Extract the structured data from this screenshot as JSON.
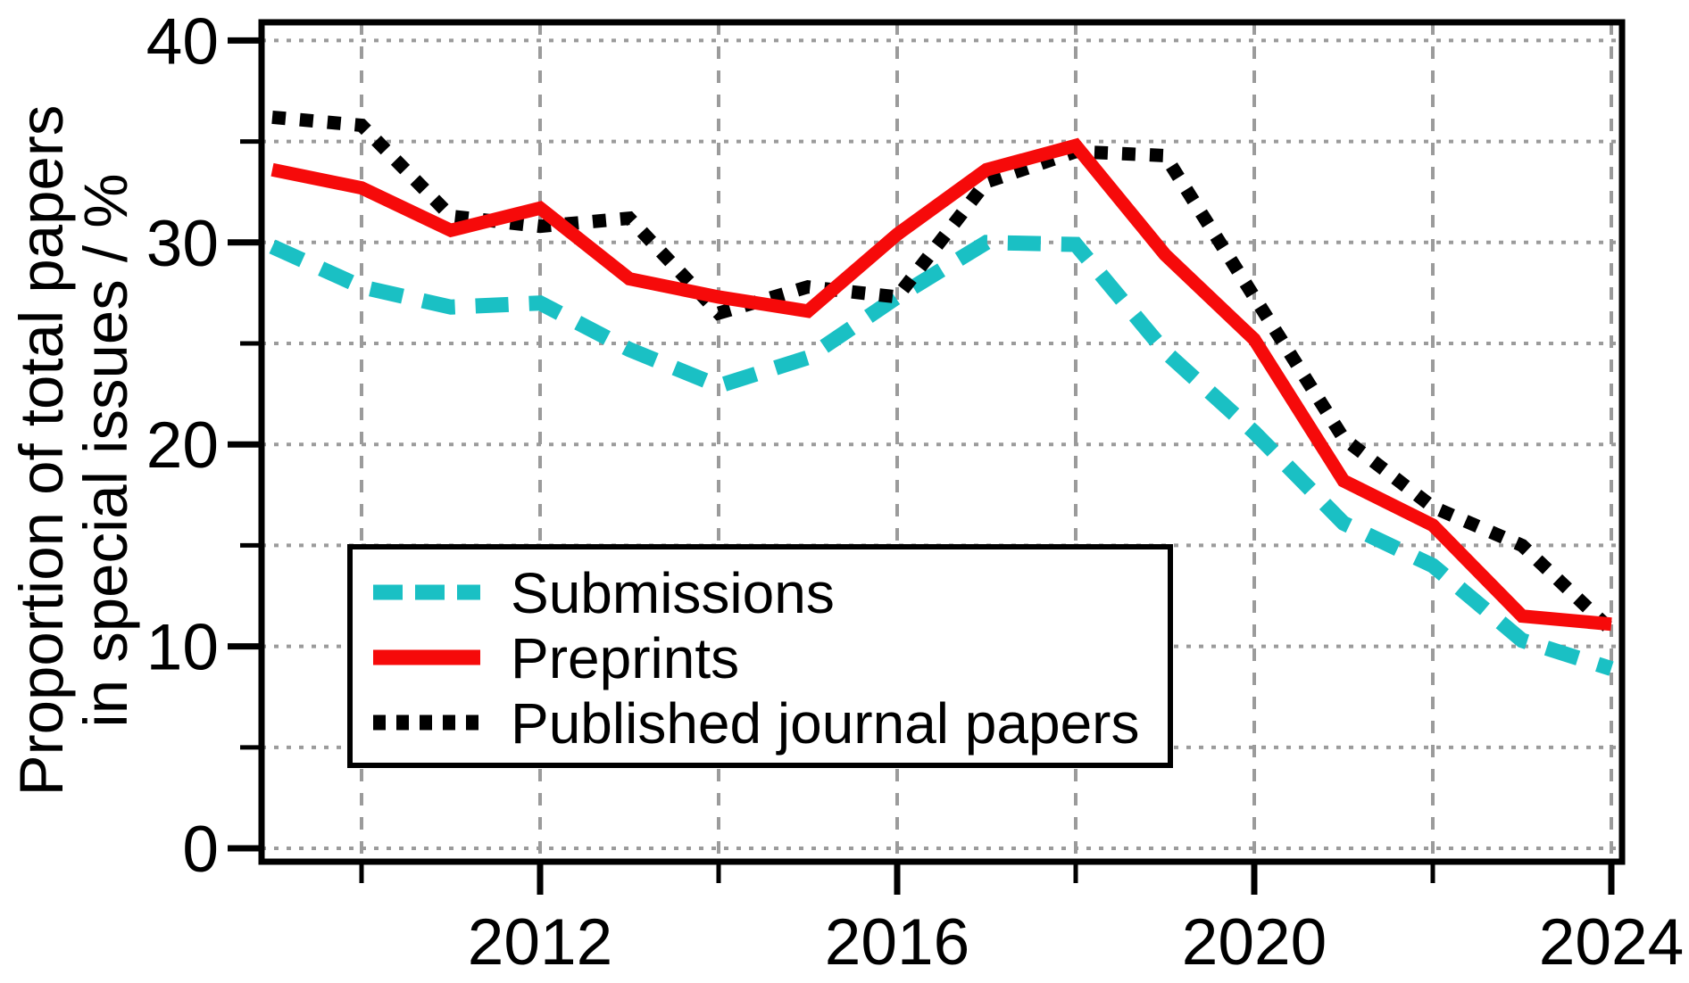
{
  "figure": {
    "background": "#ffffff",
    "ylabel_line1": "Proportion of total papers",
    "ylabel_line2": "in special issues / %"
  },
  "chart_data": {
    "type": "line",
    "title": "",
    "xlabel": "",
    "ylabel": "Proportion of total papers in special issues / %",
    "x": [
      2009,
      2010,
      2011,
      2012,
      2013,
      2014,
      2015,
      2016,
      2017,
      2018,
      2019,
      2020,
      2021,
      2022,
      2023,
      2024
    ],
    "series": [
      {
        "name": "Submissions",
        "color": "#1ac0c4",
        "style": "dashed",
        "values": [
          29.8,
          27.8,
          26.8,
          27.0,
          24.7,
          22.9,
          24.3,
          27.3,
          30.0,
          29.9,
          24.6,
          20.6,
          16.1,
          14.0,
          10.3,
          8.9
        ]
      },
      {
        "name": "Preprints",
        "color": "#f60a0a",
        "style": "solid",
        "values": [
          33.6,
          32.7,
          30.6,
          31.7,
          28.2,
          27.3,
          26.6,
          30.4,
          33.6,
          34.8,
          29.4,
          25.2,
          18.2,
          16.0,
          11.5,
          11.1
        ]
      },
      {
        "name": "Published journal papers",
        "color": "#000000",
        "style": "dotted",
        "values": [
          36.2,
          35.8,
          31.3,
          30.8,
          31.2,
          26.5,
          27.8,
          27.3,
          33.0,
          34.5,
          34.3,
          27.3,
          20.3,
          16.9,
          15.0,
          10.8
        ]
      }
    ],
    "draw_order": [
      0,
      2,
      1
    ],
    "xlim": [
      2008.88,
      2024.12
    ],
    "ylim": [
      -0.66,
      40.9
    ],
    "x_major_ticks": [
      2012,
      2016,
      2020,
      2024
    ],
    "x_minor_ticks": [
      2010,
      2014,
      2018,
      2022
    ],
    "x_tick_labels": [
      "2012",
      "2016",
      "2020",
      "2024"
    ],
    "y_major_ticks": [
      0,
      10,
      20,
      30,
      40
    ],
    "y_minor_ticks": [
      5,
      15,
      25,
      35
    ],
    "y_tick_labels": [
      "0",
      "10",
      "20",
      "30",
      "40"
    ],
    "grid": {
      "on": true,
      "h_step": 5,
      "v_years": [
        2010,
        2012,
        2014,
        2016,
        2018,
        2020,
        2022,
        2024
      ],
      "color": "#9b9b9b"
    },
    "legend": {
      "position": "inside-lower-left",
      "entries": [
        "Submissions",
        "Preprints",
        "Published journal papers"
      ]
    },
    "axis_color": "#000000"
  }
}
